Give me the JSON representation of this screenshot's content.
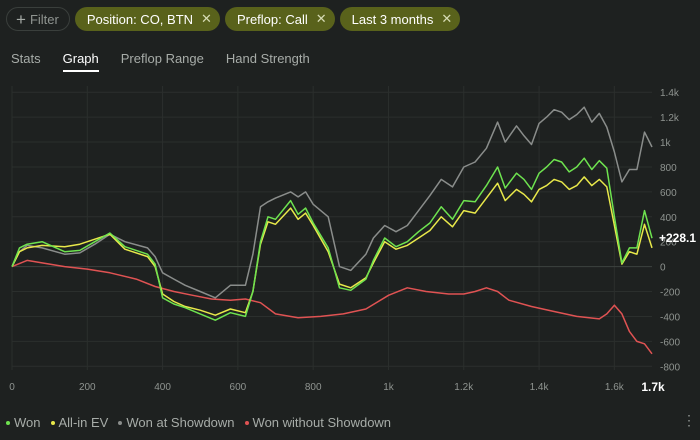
{
  "filter_bar": {
    "add_label": "Filter",
    "chips": [
      {
        "label": "Position: CO, BTN"
      },
      {
        "label": "Preflop: Call"
      },
      {
        "label": "Last 3 months"
      }
    ]
  },
  "tabs": [
    "Stats",
    "Graph",
    "Preflop Range",
    "Hand Strength"
  ],
  "selected_tab": "Graph",
  "colors": {
    "won": "#6ee34f",
    "allin_ev": "#e8e84a",
    "showdown": "#8a8d8b",
    "non_showdown": "#e05353"
  },
  "chart_data": {
    "type": "line",
    "x_ticks": [
      "0",
      "200",
      "400",
      "600",
      "800",
      "1k",
      "1.2k",
      "1.4k",
      "1.6k"
    ],
    "x_end_label": "1.7k",
    "xlim": [
      0,
      1700
    ],
    "y_ticks": [
      "1.4k",
      "1.2k",
      "1k",
      "800",
      "600",
      "400",
      "200",
      "0",
      "-200",
      "-400",
      "-600",
      "-800"
    ],
    "ylim": [
      -830,
      1450
    ],
    "value_label": "+228.1",
    "series": [
      {
        "name": "Won",
        "key": "won",
        "x": [
          0,
          20,
          40,
          80,
          140,
          180,
          220,
          260,
          300,
          360,
          380,
          400,
          430,
          460,
          500,
          540,
          580,
          620,
          640,
          660,
          680,
          700,
          740,
          760,
          780,
          800,
          840,
          870,
          900,
          940,
          960,
          990,
          1020,
          1050,
          1080,
          1110,
          1140,
          1170,
          1200,
          1230,
          1260,
          1290,
          1310,
          1340,
          1360,
          1380,
          1400,
          1420,
          1440,
          1460,
          1480,
          1500,
          1520,
          1540,
          1560,
          1580,
          1600,
          1620,
          1640,
          1660,
          1680,
          1700
        ],
        "y": [
          0,
          150,
          180,
          200,
          120,
          130,
          200,
          270,
          160,
          100,
          20,
          -250,
          -300,
          -330,
          -380,
          -430,
          -370,
          -400,
          -200,
          200,
          400,
          380,
          530,
          420,
          470,
          350,
          150,
          -170,
          -190,
          -100,
          50,
          230,
          160,
          200,
          280,
          350,
          480,
          380,
          530,
          520,
          650,
          800,
          630,
          750,
          700,
          620,
          750,
          800,
          860,
          840,
          760,
          800,
          870,
          780,
          850,
          790,
          400,
          30,
          150,
          150,
          450,
          228
        ]
      },
      {
        "name": "All-in EV",
        "key": "allin_ev",
        "x": [
          0,
          20,
          40,
          80,
          140,
          180,
          220,
          260,
          300,
          360,
          380,
          400,
          430,
          460,
          500,
          540,
          580,
          620,
          640,
          660,
          680,
          700,
          740,
          760,
          780,
          800,
          840,
          870,
          900,
          940,
          960,
          990,
          1020,
          1050,
          1080,
          1110,
          1140,
          1170,
          1200,
          1230,
          1260,
          1290,
          1310,
          1340,
          1360,
          1380,
          1400,
          1420,
          1440,
          1460,
          1480,
          1500,
          1520,
          1540,
          1560,
          1580,
          1600,
          1620,
          1640,
          1660,
          1680,
          1700
        ],
        "y": [
          0,
          120,
          150,
          170,
          160,
          180,
          220,
          260,
          140,
          80,
          0,
          -220,
          -280,
          -320,
          -350,
          -390,
          -340,
          -370,
          -200,
          180,
          360,
          340,
          470,
          380,
          430,
          330,
          120,
          -140,
          -170,
          -90,
          30,
          200,
          140,
          170,
          230,
          290,
          400,
          320,
          450,
          430,
          550,
          670,
          530,
          620,
          580,
          520,
          620,
          650,
          700,
          680,
          620,
          650,
          720,
          650,
          700,
          640,
          330,
          20,
          120,
          100,
          340,
          150
        ]
      },
      {
        "name": "Won at Showdown",
        "key": "showdown",
        "x": [
          0,
          20,
          40,
          80,
          140,
          180,
          220,
          260,
          300,
          360,
          380,
          400,
          430,
          460,
          500,
          540,
          580,
          620,
          640,
          660,
          680,
          700,
          740,
          760,
          780,
          800,
          840,
          870,
          900,
          940,
          960,
          990,
          1020,
          1050,
          1080,
          1110,
          1140,
          1170,
          1200,
          1230,
          1260,
          1290,
          1310,
          1340,
          1360,
          1380,
          1400,
          1420,
          1440,
          1460,
          1480,
          1500,
          1520,
          1540,
          1560,
          1580,
          1600,
          1620,
          1640,
          1660,
          1680,
          1700
        ],
        "y": [
          0,
          120,
          170,
          150,
          100,
          110,
          180,
          260,
          200,
          150,
          80,
          -50,
          -100,
          -150,
          -200,
          -250,
          -150,
          -150,
          100,
          480,
          520,
          550,
          600,
          560,
          600,
          500,
          400,
          0,
          -30,
          100,
          230,
          330,
          280,
          330,
          450,
          570,
          700,
          640,
          800,
          840,
          950,
          1160,
          1000,
          1130,
          1050,
          980,
          1150,
          1200,
          1260,
          1240,
          1180,
          1220,
          1280,
          1160,
          1230,
          1120,
          920,
          680,
          780,
          780,
          1080,
          960
        ]
      },
      {
        "name": "Won without Showdown",
        "key": "non_showdown",
        "x": [
          0,
          40,
          80,
          140,
          200,
          260,
          330,
          380,
          430,
          480,
          530,
          580,
          620,
          660,
          700,
          760,
          820,
          880,
          940,
          1000,
          1050,
          1100,
          1160,
          1200,
          1230,
          1260,
          1290,
          1320,
          1380,
          1440,
          1500,
          1560,
          1580,
          1600,
          1620,
          1640,
          1660,
          1680,
          1700
        ],
        "y": [
          0,
          50,
          30,
          0,
          -20,
          -50,
          -100,
          -160,
          -200,
          -230,
          -260,
          -270,
          -260,
          -290,
          -380,
          -410,
          -400,
          -380,
          -340,
          -230,
          -170,
          -200,
          -220,
          -220,
          -200,
          -170,
          -200,
          -270,
          -320,
          -360,
          -400,
          -420,
          -380,
          -310,
          -380,
          -520,
          -600,
          -620,
          -700
        ]
      }
    ]
  },
  "legend": {
    "items": [
      {
        "label": "Won",
        "key": "won"
      },
      {
        "label": "All-in EV",
        "key": "allin_ev"
      },
      {
        "label": "Won at Showdown",
        "key": "showdown"
      },
      {
        "label": "Won without Showdown",
        "key": "non_showdown"
      }
    ]
  },
  "more_label": "⋮"
}
